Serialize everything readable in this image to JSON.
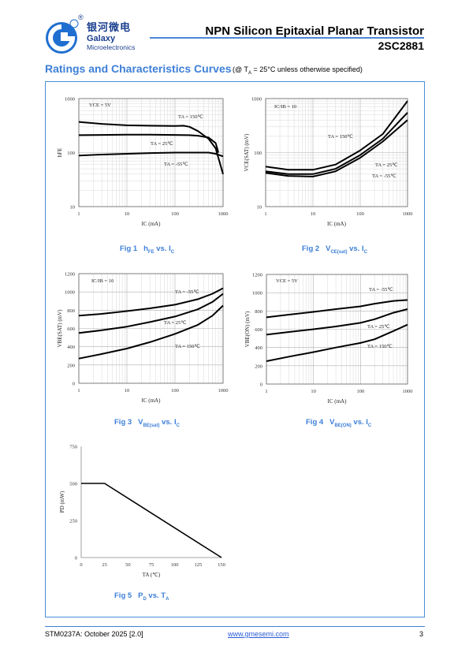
{
  "header": {
    "brand_cn": "银河微电",
    "brand_en1": "Galaxy",
    "brand_en2": "Microelectronics",
    "registered": "®",
    "title": "NPN Silicon Epitaxial Planar Transistor",
    "part": "2SC2881"
  },
  "section": {
    "title": "Ratings and Characteristics Curves",
    "note_pre": "(@ T",
    "note_sub": "A",
    "note_post": " = 25°C unless otherwise specified)"
  },
  "figures": [
    {
      "num": "Fig 1",
      "cap": "h",
      "cap_sub": "FE",
      "cap_mid": " vs. I",
      "cap_sub2": "C"
    },
    {
      "num": "Fig 2",
      "cap": "V",
      "cap_sub": "CE(sat)",
      "cap_mid": " vs. I",
      "cap_sub2": "C"
    },
    {
      "num": "Fig 3",
      "cap": "V",
      "cap_sub": "BE(sat)",
      "cap_mid": " vs. I",
      "cap_sub2": "C"
    },
    {
      "num": "Fig 4",
      "cap": "V",
      "cap_sub": "BE(ON)",
      "cap_mid": " vs. I",
      "cap_sub2": "C"
    },
    {
      "num": "Fig 5",
      "cap": "P",
      "cap_sub": "D",
      "cap_mid": " vs. T",
      "cap_sub2": "A"
    }
  ],
  "chart_data": [
    {
      "type": "line",
      "xscale": "log",
      "yscale": "log",
      "xlim": [
        1,
        1000
      ],
      "ylim": [
        10,
        1000
      ],
      "xticks": [
        "1",
        "10",
        "100",
        "1000"
      ],
      "yticks": [
        "10",
        "100",
        "1000"
      ],
      "xlabel": "IC (mA)",
      "ylabel": "hFE",
      "condition": "VCE = 5V",
      "grid": true,
      "series": [
        {
          "name": "TA = 150℃",
          "x": [
            1,
            3,
            10,
            30,
            100,
            150,
            200,
            300,
            500,
            700,
            1000
          ],
          "y": [
            370,
            340,
            320,
            315,
            310,
            315,
            300,
            250,
            180,
            120,
            40
          ]
        },
        {
          "name": "TA = 25℃",
          "x": [
            1,
            10,
            30,
            100,
            200,
            300,
            500,
            700,
            800
          ],
          "y": [
            210,
            215,
            215,
            212,
            210,
            205,
            190,
            150,
            100
          ]
        },
        {
          "name": "TA = -55℃",
          "x": [
            1,
            3,
            10,
            30,
            100,
            200,
            300,
            500,
            700,
            1000
          ],
          "y": [
            88,
            92,
            95,
            98,
            100,
            100,
            100,
            100,
            95,
            85
          ]
        }
      ]
    },
    {
      "type": "line",
      "xscale": "log",
      "yscale": "log",
      "xlim": [
        1,
        1000
      ],
      "ylim": [
        10,
        1000
      ],
      "xticks": [
        "1",
        "10",
        "100",
        "1000"
      ],
      "yticks": [
        "10",
        "100",
        "1000"
      ],
      "xlabel": "IC (mA)",
      "ylabel": "VCE(SAT) (mV)",
      "condition": "IC/IB = 10",
      "grid": true,
      "series": [
        {
          "name": "TA = 150℃",
          "x": [
            1,
            3,
            10,
            30,
            100,
            300,
            1000
          ],
          "y": [
            55,
            48,
            48,
            60,
            110,
            220,
            900
          ]
        },
        {
          "name": "TA = 25℃",
          "x": [
            1,
            3,
            10,
            30,
            100,
            300,
            1000
          ],
          "y": [
            45,
            40,
            40,
            50,
            90,
            180,
            550
          ]
        },
        {
          "name": "TA = -55℃",
          "x": [
            1,
            3,
            10,
            30,
            100,
            300,
            1000
          ],
          "y": [
            42,
            37,
            36,
            45,
            80,
            160,
            400
          ]
        }
      ]
    },
    {
      "type": "line",
      "xscale": "log",
      "yscale": "linear",
      "xlim": [
        1,
        1000
      ],
      "ylim": [
        0,
        1200
      ],
      "xticks": [
        "1",
        "10",
        "100",
        "1000"
      ],
      "yticks": [
        "0",
        "200",
        "400",
        "600",
        "800",
        "1000",
        "1200"
      ],
      "xlabel": "IC (mA)",
      "ylabel": "VBE(SAT) (mV)",
      "condition": "IC/IB = 10",
      "grid": true,
      "series": [
        {
          "name": "TA = -55℃",
          "x": [
            1,
            3,
            10,
            30,
            100,
            300,
            600,
            1000
          ],
          "y": [
            740,
            760,
            790,
            820,
            860,
            920,
            980,
            1040
          ]
        },
        {
          "name": "TA = 25℃",
          "x": [
            1,
            3,
            10,
            30,
            100,
            300,
            600,
            1000
          ],
          "y": [
            550,
            580,
            620,
            670,
            730,
            810,
            890,
            980
          ]
        },
        {
          "name": "TA = 150℃",
          "x": [
            1,
            3,
            10,
            30,
            100,
            300,
            600,
            1000
          ],
          "y": [
            270,
            320,
            380,
            450,
            540,
            640,
            740,
            850
          ]
        }
      ]
    },
    {
      "type": "line",
      "xscale": "log",
      "yscale": "linear",
      "xlim": [
        1,
        1000
      ],
      "ylim": [
        0,
        1200
      ],
      "xticks": [
        "1",
        "10",
        "100",
        "1000"
      ],
      "yticks": [
        "0",
        "200",
        "400",
        "600",
        "800",
        "1000",
        "1200"
      ],
      "xlabel": "IC (mA)",
      "ylabel": "VBE(ON) (mV)",
      "condition": "VCE = 5V",
      "grid": true,
      "series": [
        {
          "name": "TA = -55℃",
          "x": [
            1,
            3,
            10,
            30,
            100,
            200,
            500,
            1000
          ],
          "y": [
            730,
            760,
            790,
            820,
            850,
            880,
            910,
            920
          ]
        },
        {
          "name": "TA = 25℃",
          "x": [
            1,
            3,
            10,
            30,
            100,
            200,
            500,
            1000
          ],
          "y": [
            540,
            570,
            600,
            630,
            670,
            710,
            780,
            820
          ]
        },
        {
          "name": "TA = 150℃",
          "x": [
            1,
            3,
            10,
            30,
            100,
            200,
            500,
            1000
          ],
          "y": [
            250,
            300,
            350,
            400,
            450,
            490,
            580,
            650
          ]
        }
      ]
    },
    {
      "type": "line",
      "xscale": "linear",
      "yscale": "linear",
      "xlim": [
        0,
        150
      ],
      "ylim": [
        0,
        750
      ],
      "xticks": [
        "0",
        "25",
        "50",
        "75",
        "100",
        "125",
        "150"
      ],
      "yticks": [
        "0",
        "250",
        "500",
        "750"
      ],
      "xlabel": "TA (℃)",
      "ylabel": "PD (mW)",
      "grid": false,
      "series": [
        {
          "name": "PD",
          "x": [
            0,
            25,
            150
          ],
          "y": [
            500,
            500,
            0
          ]
        }
      ]
    }
  ],
  "footer": {
    "left": "STM0237A: October 2025 [2.0]",
    "mid": "www.gmesemi.com",
    "right": "3"
  }
}
